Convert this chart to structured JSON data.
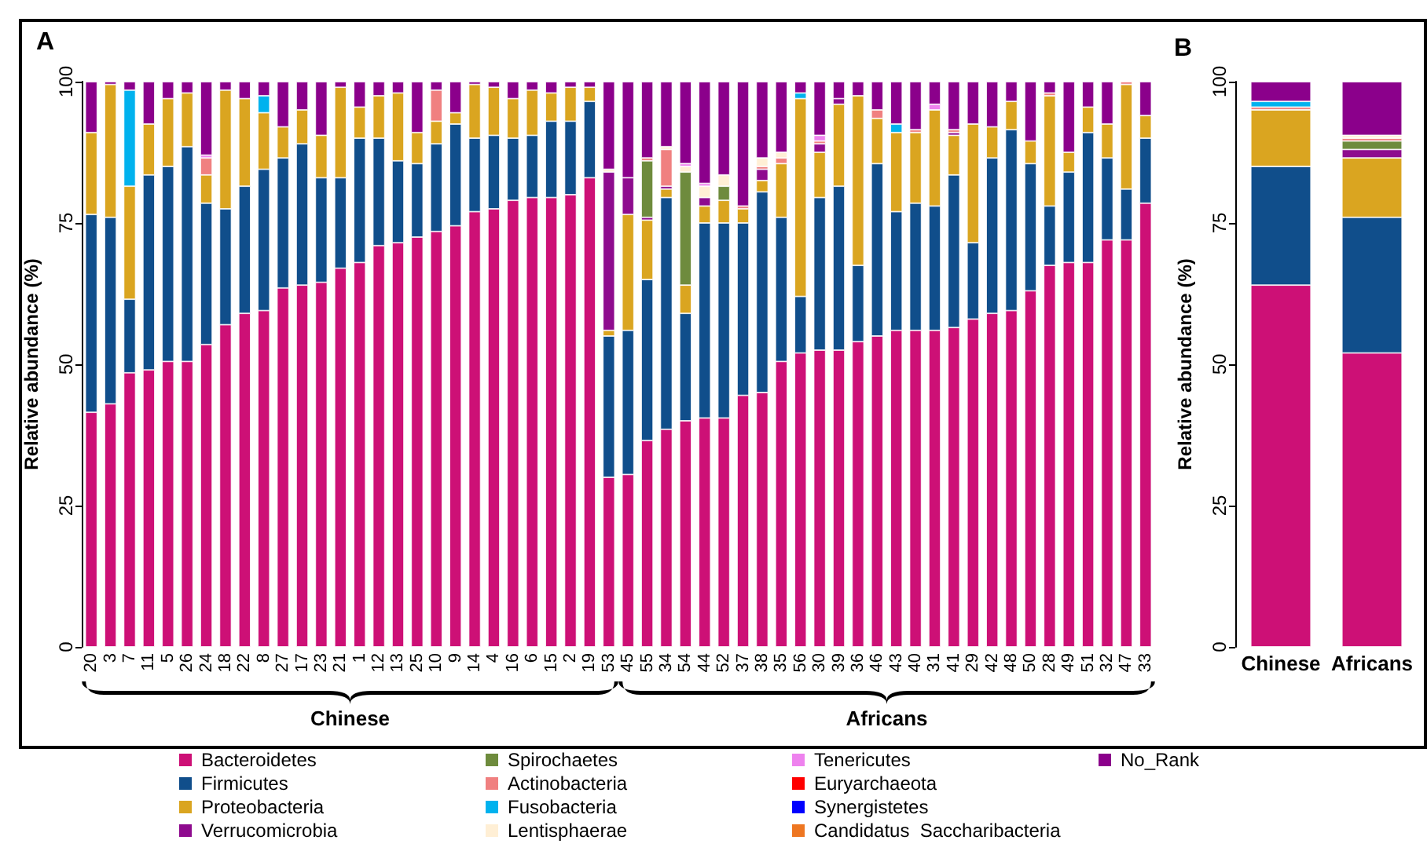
{
  "chart_data": [
    {
      "type": "bar",
      "title": "A",
      "ylabel": "Relative abundance (%)",
      "stacked": true,
      "legend": "bottom",
      "ylim": [
        0,
        100
      ],
      "yticks": [
        0,
        25,
        50,
        75,
        100
      ],
      "categories": [
        "20",
        "3",
        "7",
        "11",
        "5",
        "26",
        "24",
        "18",
        "22",
        "8",
        "27",
        "17",
        "23",
        "21",
        "1",
        "12",
        "13",
        "25",
        "10",
        "9",
        "14",
        "4",
        "16",
        "6",
        "15",
        "2",
        "19",
        "53",
        "45",
        "55",
        "34",
        "54",
        "44",
        "52",
        "37",
        "38",
        "35",
        "56",
        "30",
        "39",
        "36",
        "46",
        "43",
        "40",
        "31",
        "41",
        "29",
        "42",
        "48",
        "50",
        "28",
        "49",
        "51",
        "32",
        "47",
        "33"
      ],
      "annotations": [
        "Chinese",
        "Africans"
      ],
      "series": [
        {
          "name": "Bacteroidetes",
          "color": "#cd1076",
          "values": [
            41.5,
            43,
            48.5,
            49,
            50.5,
            50.5,
            53.5,
            57,
            59,
            59.5,
            63.5,
            64,
            64.5,
            67,
            68,
            71,
            71.5,
            72.5,
            73.5,
            74.5,
            77,
            77.5,
            79,
            79.5,
            79.5,
            80,
            83,
            30,
            30.5,
            36.5,
            38.5,
            40,
            40.5,
            40.5,
            44.5,
            45,
            50.5,
            52,
            52.5,
            52.5,
            54,
            55,
            56,
            56,
            56,
            56.5,
            58,
            59,
            59.5,
            63,
            67.5,
            68,
            68,
            72,
            72,
            78.5
          ]
        },
        {
          "name": "Firmicutes",
          "color": "#104e8b",
          "values": [
            35,
            33,
            13,
            34.5,
            34.5,
            38,
            25,
            20.5,
            22.5,
            25,
            23,
            25,
            18.5,
            16,
            22,
            19,
            14.5,
            13,
            15.5,
            18,
            13,
            13,
            11,
            11,
            13.5,
            13,
            13.5,
            25,
            25.5,
            28.5,
            41,
            19,
            34.5,
            34.5,
            30.5,
            35.5,
            25.5,
            10,
            27,
            29,
            13.5,
            30.5,
            21,
            22.5,
            22,
            27,
            13.5,
            27.5,
            32,
            22.5,
            10.5,
            16,
            23,
            14.5,
            9,
            11.5
          ]
        },
        {
          "name": "Proteobacteria",
          "color": "#daa520",
          "values": [
            14.5,
            23.5,
            20,
            9,
            12,
            9.5,
            5,
            21,
            15.5,
            10,
            5.5,
            6,
            7.5,
            16,
            5.5,
            7.5,
            12,
            5.5,
            4,
            2,
            9.5,
            8.5,
            7,
            8,
            5,
            6,
            2.5,
            1,
            20.5,
            10.5,
            1.5,
            5,
            3,
            4,
            2.5,
            2,
            9.5,
            35,
            8,
            14.5,
            30,
            8,
            14,
            12.5,
            17,
            7,
            21,
            5.5,
            5,
            4,
            19.5,
            3.5,
            4.5,
            6,
            18.5,
            4
          ]
        },
        {
          "name": "Verrucomicrobia",
          "color": "#8e0b8e",
          "values": [
            null,
            null,
            null,
            null,
            null,
            null,
            null,
            null,
            null,
            null,
            null,
            null,
            null,
            null,
            null,
            null,
            null,
            null,
            null,
            null,
            null,
            null,
            null,
            null,
            null,
            null,
            null,
            28,
            6.5,
            0.5,
            0.5,
            null,
            1.5,
            null,
            null,
            2,
            null,
            null,
            1.5,
            1,
            null,
            null,
            null,
            null,
            null,
            0.5,
            null,
            null,
            null,
            null,
            null,
            null,
            null,
            null,
            null,
            null
          ]
        },
        {
          "name": "Spirochaetes",
          "color": "#6e8b3d",
          "values": [
            null,
            null,
            null,
            null,
            null,
            null,
            null,
            null,
            null,
            null,
            null,
            null,
            null,
            null,
            null,
            null,
            null,
            null,
            null,
            null,
            null,
            null,
            null,
            null,
            null,
            null,
            null,
            null,
            null,
            10,
            null,
            20,
            null,
            2.5,
            null,
            null,
            null,
            null,
            null,
            null,
            null,
            null,
            null,
            null,
            null,
            null,
            null,
            null,
            null,
            null,
            null,
            null,
            null,
            null,
            null,
            null
          ]
        },
        {
          "name": "Actinobacteria",
          "color": "#f08080",
          "values": [
            null,
            null,
            null,
            null,
            null,
            null,
            3,
            null,
            null,
            null,
            null,
            null,
            null,
            null,
            null,
            null,
            null,
            null,
            5.5,
            null,
            null,
            null,
            null,
            null,
            null,
            null,
            null,
            null,
            null,
            0.5,
            6.5,
            null,
            null,
            null,
            0.5,
            0.5,
            1,
            null,
            0.5,
            null,
            null,
            1.5,
            null,
            0.5,
            null,
            0.5,
            null,
            null,
            null,
            null,
            0.5,
            null,
            null,
            null,
            0.5,
            null
          ]
        },
        {
          "name": "Fusobacteria",
          "color": "#00b2ee",
          "values": [
            null,
            null,
            17,
            null,
            null,
            null,
            null,
            null,
            null,
            3,
            null,
            null,
            null,
            null,
            null,
            null,
            null,
            null,
            null,
            null,
            null,
            null,
            null,
            null,
            null,
            null,
            null,
            null,
            null,
            null,
            null,
            null,
            null,
            null,
            null,
            null,
            null,
            1,
            null,
            null,
            null,
            null,
            1.5,
            null,
            null,
            null,
            null,
            null,
            null,
            null,
            null,
            null,
            null,
            null,
            null,
            null
          ]
        },
        {
          "name": "Lentisphaerae",
          "color": "#ffefd5",
          "values": [
            null,
            null,
            null,
            null,
            null,
            null,
            null,
            null,
            null,
            null,
            null,
            null,
            null,
            null,
            null,
            null,
            null,
            null,
            null,
            null,
            null,
            null,
            null,
            null,
            null,
            null,
            null,
            0.5,
            null,
            null,
            0.5,
            1,
            2,
            2,
            null,
            1.5,
            1,
            null,
            null,
            null,
            null,
            null,
            null,
            null,
            null,
            null,
            null,
            null,
            null,
            null,
            null,
            null,
            null,
            null,
            null,
            null
          ]
        },
        {
          "name": "Tenericutes",
          "color": "#ee82ee",
          "values": [
            null,
            null,
            null,
            null,
            null,
            null,
            0.5,
            null,
            null,
            null,
            null,
            null,
            null,
            null,
            null,
            null,
            null,
            null,
            null,
            null,
            null,
            null,
            null,
            null,
            null,
            null,
            null,
            null,
            null,
            null,
            null,
            0.5,
            0.5,
            null,
            null,
            null,
            null,
            null,
            1,
            null,
            null,
            null,
            null,
            null,
            1,
            null,
            null,
            null,
            null,
            null,
            null,
            null,
            null,
            null,
            null,
            null
          ]
        },
        {
          "name": "Euryarchaeota",
          "color": "#ff0000",
          "values": [
            null,
            null,
            null,
            null,
            null,
            null,
            null,
            null,
            null,
            null,
            null,
            null,
            null,
            null,
            null,
            null,
            null,
            null,
            null,
            null,
            null,
            null,
            null,
            null,
            null,
            null,
            null,
            null,
            null,
            null,
            null,
            null,
            null,
            null,
            null,
            null,
            null,
            null,
            null,
            null,
            null,
            null,
            null,
            null,
            null,
            null,
            null,
            null,
            null,
            null,
            null,
            null,
            null,
            null,
            null,
            null
          ]
        },
        {
          "name": "Synergistetes",
          "color": "#0000ff",
          "values": [
            null,
            null,
            null,
            null,
            null,
            null,
            null,
            null,
            null,
            null,
            null,
            null,
            null,
            null,
            null,
            null,
            null,
            null,
            null,
            null,
            null,
            null,
            null,
            null,
            null,
            null,
            null,
            null,
            null,
            null,
            null,
            null,
            null,
            null,
            null,
            null,
            null,
            null,
            null,
            null,
            null,
            null,
            null,
            null,
            null,
            null,
            null,
            null,
            null,
            null,
            null,
            null,
            null,
            null,
            null,
            null
          ]
        },
        {
          "name": "Candidatus  Saccharibacteria",
          "color": "#ee7621",
          "values": [
            null,
            null,
            null,
            null,
            null,
            null,
            null,
            null,
            null,
            null,
            null,
            null,
            null,
            null,
            null,
            null,
            null,
            null,
            null,
            null,
            null,
            null,
            null,
            null,
            null,
            null,
            null,
            null,
            null,
            null,
            null,
            null,
            null,
            null,
            null,
            null,
            null,
            null,
            null,
            null,
            null,
            null,
            null,
            null,
            null,
            null,
            null,
            null,
            null,
            null,
            null,
            null,
            null,
            null,
            null,
            null
          ]
        },
        {
          "name": "No_Rank",
          "color": "#8b008b",
          "values": [
            9,
            0.5,
            1.5,
            7.5,
            3,
            2,
            13,
            1.5,
            3,
            2.5,
            8,
            5,
            9.5,
            1,
            4.5,
            2.5,
            2,
            9,
            1.5,
            5.5,
            0.5,
            1,
            3,
            1.5,
            2,
            1,
            1,
            15.5,
            17,
            13.5,
            11.5,
            14.5,
            18,
            16.5,
            22,
            13.5,
            12.5,
            2,
            9.5,
            3,
            2.5,
            5,
            7.5,
            8.5,
            4,
            8.5,
            7.5,
            8,
            3.5,
            10.5,
            2,
            12.5,
            4.5,
            7.5,
            null,
            6
          ]
        }
      ]
    },
    {
      "type": "bar",
      "title": "B",
      "ylabel": "Relative abundance (%)",
      "stacked": true,
      "legend": false,
      "ylim": [
        0,
        100
      ],
      "yticks": [
        0,
        25,
        50,
        75,
        100
      ],
      "categories": [
        "Chinese",
        "Africans"
      ],
      "series": [
        {
          "color": "#cd1076",
          "values": [
            64,
            52
          ]
        },
        {
          "color": "#104e8b",
          "values": [
            21,
            24
          ]
        },
        {
          "color": "#daa520",
          "values": [
            10,
            10.5
          ]
        },
        {
          "color": "#8e0b8e",
          "values": [
            null,
            1.5
          ]
        },
        {
          "color": "#6e8b3d",
          "values": [
            null,
            1.5
          ]
        },
        {
          "color": "#f08080",
          "values": [
            0.5,
            0.5
          ]
        },
        {
          "color": "#00b2ee",
          "values": [
            1,
            null
          ]
        },
        {
          "color": "#ffefd5",
          "values": [
            null,
            0.5
          ]
        },
        {
          "color": "#8b008b",
          "values": [
            3.5,
            9.5
          ]
        }
      ]
    }
  ]
}
